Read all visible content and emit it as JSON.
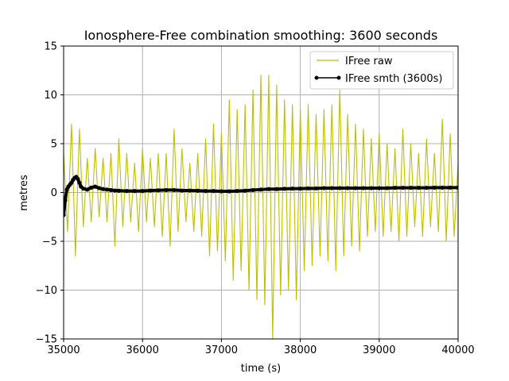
{
  "chart_data": {
    "type": "line",
    "title": "Ionosphere-Free combination smoothing: 3600 seconds",
    "xlabel": "time (s)",
    "ylabel": "metres",
    "xlim": [
      35000,
      40000
    ],
    "ylim": [
      -15,
      15
    ],
    "xticks": [
      35000,
      36000,
      37000,
      38000,
      39000,
      40000
    ],
    "yticks": [
      -15,
      -10,
      -5,
      0,
      5,
      10,
      15
    ],
    "xtick_labels": [
      "35000",
      "36000",
      "37000",
      "38000",
      "39000",
      "40000"
    ],
    "ytick_labels": [
      "−15",
      "−10",
      "−5",
      "0",
      "5",
      "10",
      "15"
    ],
    "grid": true,
    "legend_position": "upper right",
    "series": [
      {
        "name": "IFree raw",
        "color": "#bfbf00",
        "style": "line",
        "x": [
          35000,
          35050,
          35100,
          35150,
          35200,
          35250,
          35300,
          35350,
          35400,
          35450,
          35500,
          35550,
          35600,
          35650,
          35700,
          35750,
          35800,
          35850,
          35900,
          35950,
          36000,
          36050,
          36100,
          36150,
          36200,
          36250,
          36300,
          36350,
          36400,
          36450,
          36500,
          36550,
          36600,
          36650,
          36700,
          36750,
          36800,
          36850,
          36900,
          36950,
          37000,
          37050,
          37100,
          37150,
          37200,
          37250,
          37300,
          37350,
          37400,
          37450,
          37500,
          37550,
          37600,
          37650,
          37700,
          37750,
          37800,
          37850,
          37900,
          37950,
          38000,
          38050,
          38100,
          38150,
          38200,
          38250,
          38300,
          38350,
          38400,
          38450,
          38500,
          38550,
          38600,
          38650,
          38700,
          38750,
          38800,
          38850,
          38900,
          38950,
          39000,
          39050,
          39100,
          39150,
          39200,
          39250,
          39300,
          39350,
          39400,
          39450,
          39500,
          39550,
          39600,
          39650,
          39700,
          39750,
          39800,
          39850,
          39900,
          39950,
          40000
        ],
        "y": [
          4.0,
          -4.0,
          7.0,
          -6.5,
          6.5,
          -3.5,
          3.5,
          -3.0,
          4.5,
          -2.5,
          3.5,
          -3.0,
          4.0,
          -5.5,
          5.5,
          -3.5,
          4.0,
          -3.0,
          3.0,
          -4.0,
          4.5,
          -3.0,
          3.5,
          -3.5,
          4.0,
          -4.5,
          4.0,
          -5.5,
          6.5,
          -4.0,
          4.5,
          -3.0,
          3.0,
          -4.0,
          4.0,
          -4.5,
          5.5,
          -6.5,
          7.0,
          -6.0,
          6.0,
          -7.0,
          9.5,
          -9.0,
          8.5,
          -8.0,
          9.0,
          -10.0,
          10.5,
          -11.0,
          12.0,
          -11.5,
          12.0,
          -15.0,
          11.0,
          -10.5,
          9.5,
          -10.0,
          9.0,
          -11.0,
          8.5,
          -8.0,
          9.0,
          -7.5,
          8.0,
          -6.5,
          8.5,
          -7.0,
          9.0,
          -8.0,
          10.5,
          -6.5,
          8.0,
          -5.5,
          7.0,
          -6.0,
          6.5,
          -4.5,
          5.5,
          -4.0,
          6.0,
          -4.5,
          5.0,
          -4.0,
          4.5,
          -5.0,
          6.5,
          -4.5,
          5.0,
          -3.5,
          4.0,
          -4.5,
          5.5,
          -3.5,
          4.0,
          -4.0,
          7.5,
          -5.0,
          6.0,
          -4.5,
          3.0
        ]
      },
      {
        "name": "IFree smth (3600s)",
        "color": "#000000",
        "style": "line-marker",
        "x": [
          35000,
          35020,
          35040,
          35060,
          35080,
          35100,
          35120,
          35140,
          35160,
          35180,
          35200,
          35220,
          35250,
          35300,
          35350,
          35400,
          35450,
          35500,
          35550,
          35600,
          35650,
          35700,
          35800,
          35900,
          36000,
          36100,
          36200,
          36300,
          36400,
          36500,
          36600,
          36700,
          36800,
          36900,
          37000,
          37100,
          37200,
          37300,
          37400,
          37500,
          37600,
          37700,
          37800,
          37900,
          38000,
          38100,
          38200,
          38300,
          38400,
          38500,
          38600,
          38700,
          38800,
          38900,
          39000,
          39100,
          39200,
          39300,
          39400,
          39500,
          39600,
          39700,
          39800,
          39900,
          40000
        ],
        "y": [
          -2.3,
          -0.8,
          0.3,
          0.6,
          0.8,
          1.0,
          1.3,
          1.5,
          1.6,
          1.4,
          1.0,
          0.6,
          0.4,
          0.3,
          0.5,
          0.6,
          0.45,
          0.35,
          0.3,
          0.25,
          0.2,
          0.18,
          0.15,
          0.15,
          0.15,
          0.2,
          0.22,
          0.25,
          0.25,
          0.2,
          0.2,
          0.18,
          0.15,
          0.15,
          0.12,
          0.12,
          0.15,
          0.18,
          0.25,
          0.3,
          0.35,
          0.35,
          0.38,
          0.4,
          0.4,
          0.42,
          0.42,
          0.45,
          0.45,
          0.45,
          0.45,
          0.45,
          0.45,
          0.45,
          0.45,
          0.45,
          0.48,
          0.48,
          0.48,
          0.48,
          0.48,
          0.5,
          0.5,
          0.5,
          0.5
        ]
      }
    ]
  }
}
